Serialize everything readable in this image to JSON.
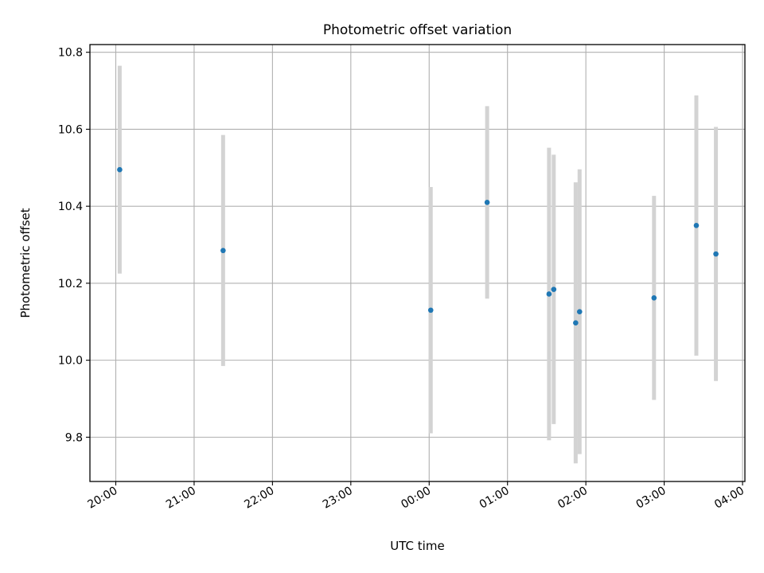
{
  "chart_data": {
    "type": "scatter",
    "title": "Photometric offset variation",
    "xlabel": "UTC time",
    "ylabel": "Photometric offset",
    "x_unit": "hours since midnight UTC (negative = previous day)",
    "xlim": [
      -4.33,
      4.03
    ],
    "ylim": [
      9.685,
      10.82
    ],
    "x_ticks": [
      {
        "value": -4,
        "label": "20:00"
      },
      {
        "value": -3,
        "label": "21:00"
      },
      {
        "value": -2,
        "label": "22:00"
      },
      {
        "value": -1,
        "label": "23:00"
      },
      {
        "value": 0,
        "label": "00:00"
      },
      {
        "value": 1,
        "label": "01:00"
      },
      {
        "value": 2,
        "label": "02:00"
      },
      {
        "value": 3,
        "label": "03:00"
      },
      {
        "value": 4,
        "label": "04:00"
      }
    ],
    "y_ticks": [
      {
        "value": 9.8,
        "label": "9.8"
      },
      {
        "value": 10.0,
        "label": "10.0"
      },
      {
        "value": 10.2,
        "label": "10.2"
      },
      {
        "value": 10.4,
        "label": "10.4"
      },
      {
        "value": 10.6,
        "label": "10.6"
      },
      {
        "value": 10.8,
        "label": "10.8"
      }
    ],
    "grid": true,
    "colors": {
      "point": "#1f77b4",
      "errorbar": "#d3d3d3"
    },
    "series": [
      {
        "points": [
          {
            "time": "20:03",
            "x": -3.95,
            "y": 10.495,
            "err": 0.27
          },
          {
            "time": "21:22",
            "x": -2.63,
            "y": 10.285,
            "err": 0.3
          },
          {
            "time": "00:01",
            "x": 0.02,
            "y": 10.13,
            "err": 0.32
          },
          {
            "time": "00:44",
            "x": 0.74,
            "y": 10.41,
            "err": 0.25
          },
          {
            "time": "01:32",
            "x": 1.53,
            "y": 10.172,
            "err": 0.38
          },
          {
            "time": "01:35",
            "x": 1.59,
            "y": 10.184,
            "err": 0.35
          },
          {
            "time": "01:52",
            "x": 1.87,
            "y": 10.097,
            "err": 0.365
          },
          {
            "time": "01:55",
            "x": 1.92,
            "y": 10.126,
            "err": 0.37
          },
          {
            "time": "02:52",
            "x": 2.87,
            "y": 10.162,
            "err": 0.265
          },
          {
            "time": "03:24",
            "x": 3.41,
            "y": 10.35,
            "err": 0.338
          },
          {
            "time": "03:39",
            "x": 3.66,
            "y": 10.276,
            "err": 0.33
          }
        ]
      }
    ]
  }
}
